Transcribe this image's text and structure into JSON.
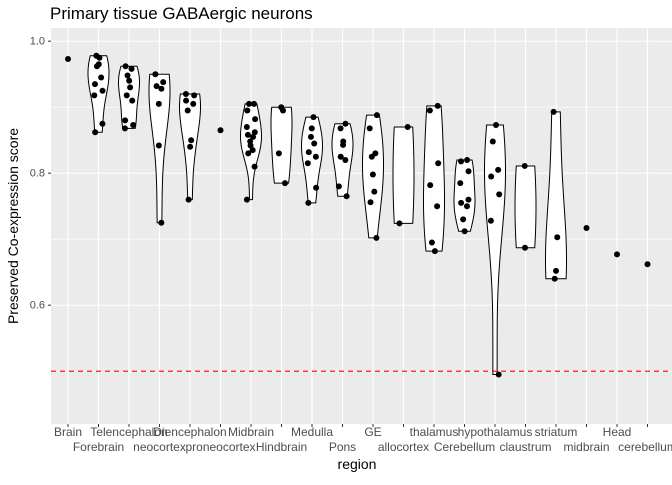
{
  "chart_data": {
    "type": "violin",
    "title": "Primary tissue GABAergic neurons",
    "xlabel": "region",
    "ylabel": "Preserved Co-expression score",
    "ylim": [
      0.42,
      1.02
    ],
    "yticks": [
      0.6,
      0.8,
      1.0
    ],
    "ytick_labels": [
      "0.6",
      "0.8",
      "1.0"
    ],
    "grid": true,
    "reference_line": {
      "value": 0.5,
      "color": "#FF0000",
      "style": "dashed"
    },
    "colors": {
      "panel": "#EBEBEB",
      "grid": "#FFFFFF",
      "points": "#000000",
      "violin_outline": "#000000"
    },
    "categories": [
      {
        "label": "Brain",
        "values": [
          0.973
        ]
      },
      {
        "label": "Forebrain",
        "values": [
          0.978,
          0.975,
          0.965,
          0.962,
          0.945,
          0.935,
          0.925,
          0.918,
          0.875,
          0.862
        ]
      },
      {
        "label": "Telencephalon",
        "values": [
          0.962,
          0.958,
          0.948,
          0.94,
          0.93,
          0.918,
          0.91,
          0.88,
          0.873,
          0.868
        ]
      },
      {
        "label": "neocortex",
        "values": [
          0.95,
          0.938,
          0.932,
          0.928,
          0.905,
          0.842,
          0.725
        ]
      },
      {
        "label": "Diencephalon",
        "values": [
          0.92,
          0.918,
          0.91,
          0.905,
          0.895,
          0.85,
          0.84,
          0.76
        ]
      },
      {
        "label": "proneocortex",
        "values": [
          0.865
        ]
      },
      {
        "label": "Midbrain",
        "values": [
          0.905,
          0.905,
          0.895,
          0.882,
          0.87,
          0.862,
          0.858,
          0.855,
          0.848,
          0.842,
          0.835,
          0.83,
          0.81,
          0.76
        ]
      },
      {
        "label": "Hindbrain",
        "values": [
          0.9,
          0.895,
          0.83,
          0.785
        ]
      },
      {
        "label": "Medulla",
        "values": [
          0.885,
          0.868,
          0.855,
          0.845,
          0.832,
          0.825,
          0.815,
          0.778,
          0.755
        ]
      },
      {
        "label": "Pons",
        "values": [
          0.875,
          0.868,
          0.848,
          0.843,
          0.825,
          0.82,
          0.78,
          0.765
        ]
      },
      {
        "label": "GE",
        "values": [
          0.888,
          0.868,
          0.83,
          0.825,
          0.798,
          0.772,
          0.756,
          0.702
        ]
      },
      {
        "label": "allocortex",
        "values": [
          0.87,
          0.724
        ]
      },
      {
        "label": "thalamus",
        "values": [
          0.902,
          0.895,
          0.815,
          0.782,
          0.75,
          0.695,
          0.682
        ]
      },
      {
        "label": "Cerebellum",
        "values": [
          0.82,
          0.818,
          0.803,
          0.785,
          0.76,
          0.755,
          0.75,
          0.73,
          0.712
        ]
      },
      {
        "label": "hypothalamus",
        "values": [
          0.873,
          0.848,
          0.805,
          0.795,
          0.768,
          0.728,
          0.495
        ]
      },
      {
        "label": "claustrum",
        "values": [
          0.811,
          0.687
        ]
      },
      {
        "label": "striatum",
        "values": [
          0.893,
          0.703,
          0.652,
          0.64
        ]
      },
      {
        "label": "midbrain",
        "values": [
          0.717
        ]
      },
      {
        "label": "Head",
        "values": [
          0.677
        ]
      },
      {
        "label": "cerebellum",
        "values": [
          0.662
        ]
      }
    ]
  }
}
